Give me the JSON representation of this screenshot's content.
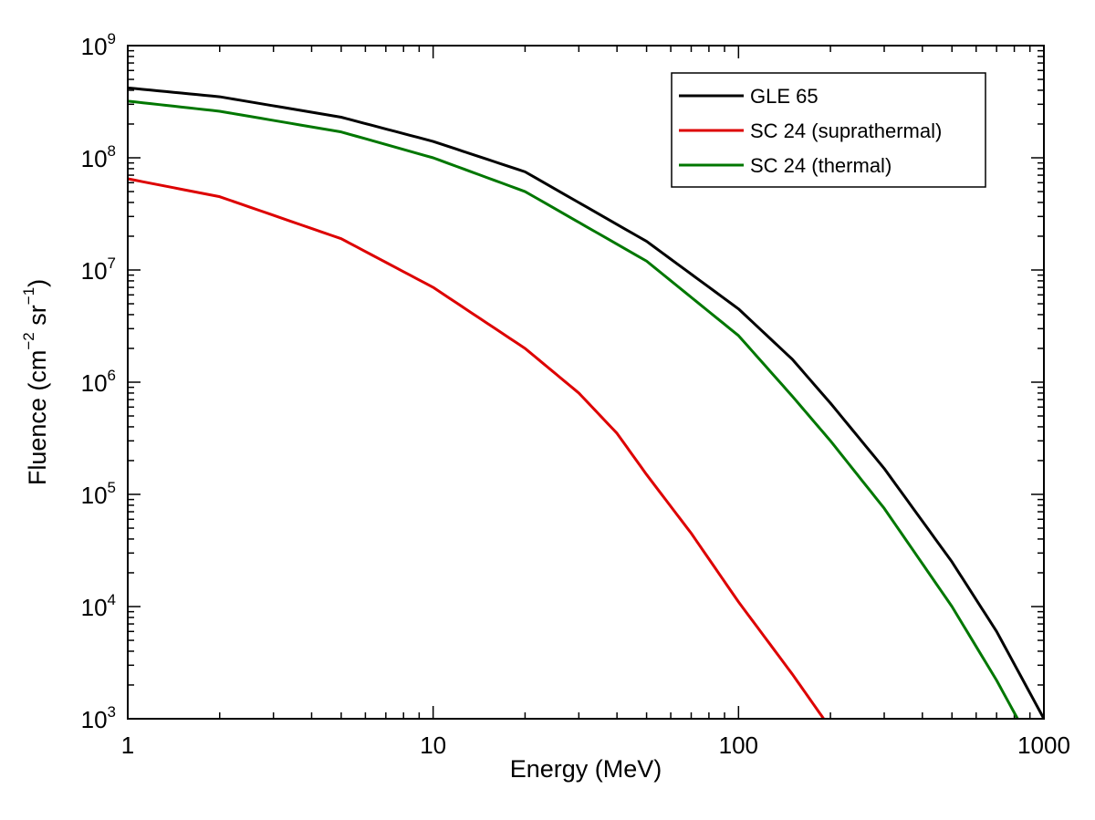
{
  "chart_data": {
    "type": "line",
    "title": "",
    "xlabel": "Energy (MeV)",
    "ylabel": {
      "prefix": "Fluence (cm",
      "exp1": "−2",
      "middle": " sr",
      "exp2": "−1",
      "suffix": ")"
    },
    "x_scale": "log",
    "y_scale": "log",
    "xlim": [
      1,
      1000
    ],
    "ylim": [
      1000,
      1000000000
    ],
    "x_ticks": [
      {
        "value": 1,
        "label": "1"
      },
      {
        "value": 10,
        "label": "10"
      },
      {
        "value": 100,
        "label": "100"
      },
      {
        "value": 1000,
        "label": "1000"
      }
    ],
    "y_ticks": [
      {
        "value": 1000,
        "base": "10",
        "exp": "3"
      },
      {
        "value": 10000,
        "base": "10",
        "exp": "4"
      },
      {
        "value": 100000,
        "base": "10",
        "exp": "5"
      },
      {
        "value": 1000000,
        "base": "10",
        "exp": "6"
      },
      {
        "value": 10000000,
        "base": "10",
        "exp": "7"
      },
      {
        "value": 100000000,
        "base": "10",
        "exp": "8"
      },
      {
        "value": 1000000000,
        "base": "10",
        "exp": "9"
      }
    ],
    "grid": false,
    "legend_position": "top-right",
    "series": [
      {
        "name": "GLE 65",
        "color": "#000000",
        "x": [
          1,
          2,
          5,
          10,
          20,
          50,
          100,
          150,
          200,
          300,
          500,
          700,
          1000
        ],
        "y": [
          420000000,
          350000000,
          230000000,
          140000000,
          75000000,
          18000000,
          4500000,
          1600000,
          650000,
          170000,
          25000,
          6000,
          1000
        ]
      },
      {
        "name": "SC 24 (suprathermal)",
        "color": "#dd0000",
        "x": [
          1,
          2,
          5,
          10,
          20,
          30,
          40,
          50,
          70,
          100,
          150,
          190
        ],
        "y": [
          65000000,
          45000000,
          19000000,
          7000000,
          2000000,
          800000,
          350000,
          150000,
          45000,
          11000,
          2500,
          1000
        ]
      },
      {
        "name": "SC 24 (thermal)",
        "color": "#007700",
        "x": [
          1,
          2,
          5,
          10,
          20,
          50,
          100,
          150,
          200,
          300,
          500,
          700,
          820
        ],
        "y": [
          320000000,
          260000000,
          170000000,
          100000000,
          50000000,
          12000000,
          2600000,
          750000,
          300000,
          75000,
          10000,
          2200,
          1000
        ]
      }
    ]
  }
}
